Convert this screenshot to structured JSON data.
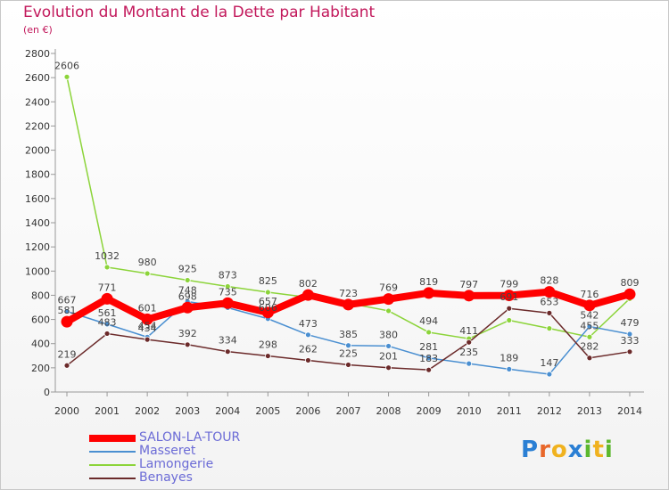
{
  "title": "Evolution du Montant de la Dette par Habitant",
  "subtitle": "(en €)",
  "logo": {
    "text": "Proxiti"
  },
  "chart_data": {
    "type": "line",
    "x": [
      "2000",
      "2001",
      "2002",
      "2003",
      "2004",
      "2005",
      "2006",
      "2007",
      "2008",
      "2009",
      "2010",
      "2011",
      "2012",
      "2013",
      "2014"
    ],
    "ylim": [
      0,
      2800
    ],
    "yticks": [
      0,
      200,
      400,
      600,
      800,
      1000,
      1200,
      1400,
      1600,
      1800,
      2000,
      2200,
      2400,
      2600,
      2800
    ],
    "grid": false,
    "legend_position": "bottom-left",
    "series": [
      {
        "name": "Lamongerie",
        "color": "#8cd43a",
        "values": [
          2606,
          1032,
          980,
          925,
          873,
          825,
          783,
          735,
          671,
          494,
          441,
          593,
          526,
          455,
          772
        ],
        "labels": [
          "2606",
          "1032",
          "980",
          "925",
          "873",
          "825",
          "",
          "",
          "",
          "494",
          "",
          "",
          "",
          "455",
          ""
        ]
      },
      {
        "name": "Masseret",
        "color": "#4a8fd1",
        "values": [
          667,
          561,
          454,
          748,
          697,
          606,
          473,
          385,
          380,
          281,
          235,
          189,
          147,
          542,
          479
        ],
        "labels": [
          "667",
          "561",
          "454",
          "748",
          "",
          "606",
          "473",
          "385",
          "380",
          "281",
          "235",
          "189",
          "147",
          "542",
          "479"
        ]
      },
      {
        "name": "Benayes",
        "color": "#6b2a2a",
        "values": [
          219,
          483,
          434,
          392,
          334,
          298,
          262,
          225,
          201,
          183,
          411,
          691,
          653,
          282,
          333
        ],
        "labels": [
          "219",
          "483",
          "434",
          "392",
          "334",
          "298",
          "262",
          "225",
          "201",
          "183",
          "411",
          "691",
          "653",
          "282",
          "333"
        ]
      },
      {
        "name": "SALON-LA-TOUR",
        "color": "#ff0000",
        "values": [
          581,
          771,
          601,
          698,
          735,
          657,
          802,
          723,
          769,
          819,
          797,
          799,
          828,
          716,
          809
        ],
        "labels": [
          "581",
          "771",
          "601",
          "698",
          "735",
          "657",
          "802",
          "723",
          "769",
          "819",
          "797",
          "799",
          "828",
          "716",
          "809"
        ]
      }
    ],
    "legend_order": [
      "SALON-LA-TOUR",
      "Masseret",
      "Lamongerie",
      "Benayes"
    ]
  }
}
